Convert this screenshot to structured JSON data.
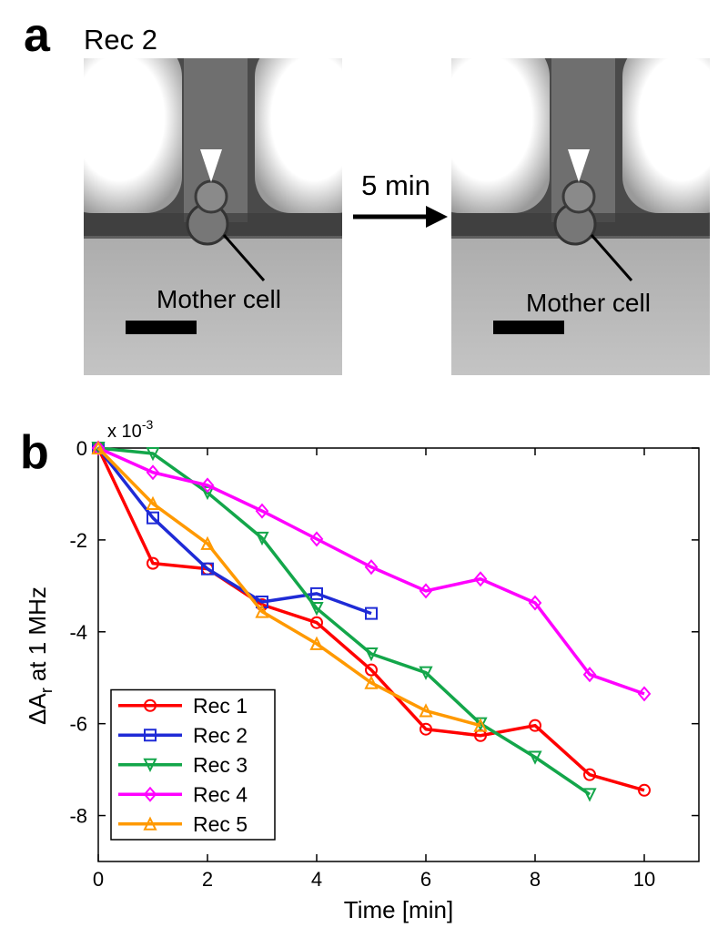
{
  "panel_a": {
    "label": "a",
    "title": "Rec 2",
    "arrow_label": "5 min",
    "left_annotation": "Mother cell",
    "right_annotation": "Mother cell"
  },
  "panel_b": {
    "label": "b"
  },
  "chart_data": {
    "type": "line",
    "xlabel": "Time [min]",
    "ylabel_main": "ΔA",
    "ylabel_sub": "r",
    "ylabel_suffix": "at 1 MHz",
    "multiplier": "x 10",
    "multiplier_exp": "-3",
    "xlim": [
      0,
      11
    ],
    "ylim": [
      -9,
      0
    ],
    "xticks": [
      0,
      2,
      4,
      6,
      8,
      10
    ],
    "yticks": [
      0,
      -2,
      -4,
      -6,
      -8
    ],
    "grid": false,
    "legend": "lower left",
    "series": [
      {
        "name": "Rec 1",
        "color": "#ff0000",
        "marker": "circle",
        "x": [
          0,
          1,
          2,
          3,
          4,
          5,
          6,
          7,
          8,
          9,
          10
        ],
        "values": [
          0,
          -2.51,
          -2.63,
          -3.41,
          -3.8,
          -4.83,
          -6.12,
          -6.26,
          -6.04,
          -7.11,
          -7.45
        ]
      },
      {
        "name": "Rec 2",
        "color": "#1f2bd6",
        "marker": "square",
        "x": [
          0,
          1,
          2,
          3,
          4,
          5
        ],
        "values": [
          0,
          -1.52,
          -2.63,
          -3.35,
          -3.17,
          -3.6
        ]
      },
      {
        "name": "Rec 3",
        "color": "#13a64a",
        "marker": "triangle-down",
        "x": [
          0,
          1,
          2,
          3,
          4,
          5,
          6,
          7,
          8,
          9
        ],
        "values": [
          0,
          -0.12,
          -0.97,
          -1.96,
          -3.49,
          -4.48,
          -4.89,
          -6.0,
          -6.73,
          -7.54
        ]
      },
      {
        "name": "Rec 4",
        "color": "#ff00ff",
        "marker": "diamond",
        "x": [
          0,
          1,
          2,
          3,
          4,
          5,
          6,
          7,
          8,
          9,
          10
        ],
        "values": [
          0,
          -0.53,
          -0.81,
          -1.37,
          -1.98,
          -2.59,
          -3.11,
          -2.85,
          -3.37,
          -4.93,
          -5.35
        ]
      },
      {
        "name": "Rec 5",
        "color": "#ff9900",
        "marker": "triangle-up",
        "x": [
          0,
          1,
          2,
          3,
          4,
          5,
          6,
          7
        ],
        "values": [
          0,
          -1.21,
          -2.08,
          -3.56,
          -4.26,
          -5.11,
          -5.72,
          -6.04
        ]
      }
    ]
  }
}
